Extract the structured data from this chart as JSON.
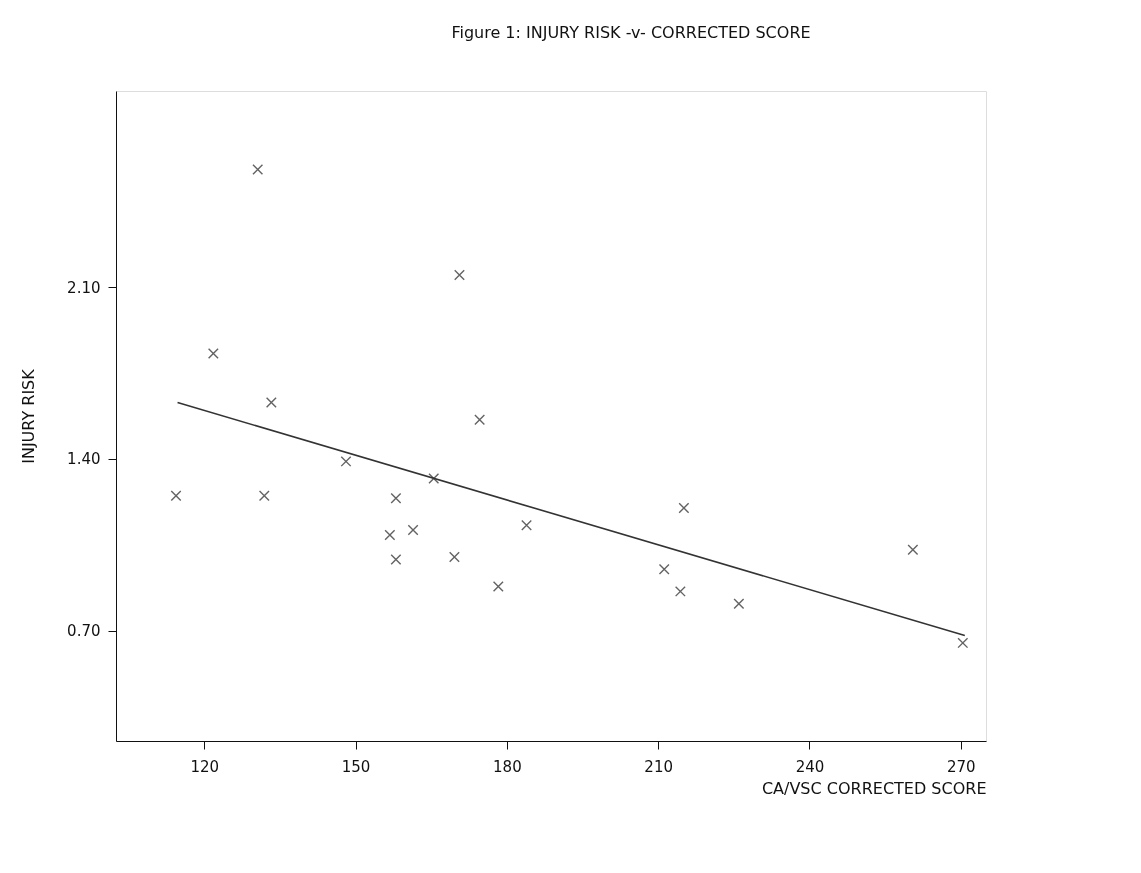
{
  "chart_data": {
    "type": "scatter",
    "title": "Figure 1: INJURY RISK -v- CORRECTED SCORE",
    "xlabel": "CA/VSC CORRECTED SCORE",
    "ylabel": "INJURY RISK",
    "marker": "cross",
    "grid": false,
    "xlim": [
      102.5,
      275
    ],
    "xticks": [
      120,
      150,
      180,
      210,
      240,
      270
    ],
    "ylim": [
      0.25,
      2.9
    ],
    "yticks": [
      {
        "value": 0.7,
        "label": "0.70"
      },
      {
        "value": 1.4,
        "label": "1.40"
      },
      {
        "value": 2.1,
        "label": "2.10"
      }
    ],
    "series": [
      {
        "color": "#222222",
        "x": [
          130.6,
          121.8,
          170.6,
          133.3,
          174.6,
          148.1,
          114.4,
          131.9,
          158.0,
          165.5,
          156.8,
          161.4,
          158.0,
          169.6,
          178.3,
          183.9,
          211.2,
          214.4,
          215.1,
          226.0,
          260.5,
          270.4
        ],
        "values": [
          2.58,
          1.83,
          2.15,
          1.63,
          1.56,
          1.39,
          1.25,
          1.25,
          1.24,
          1.32,
          1.09,
          1.11,
          0.99,
          1.0,
          0.88,
          1.13,
          0.95,
          0.86,
          1.2,
          0.81,
          1.03,
          0.65
        ]
      },
      {
        "type": "line",
        "color": "#333333",
        "line_style": "solid",
        "marker": "none",
        "x": [
          114.7,
          270.8
        ],
        "values": [
          1.63,
          0.68
        ]
      }
    ]
  }
}
